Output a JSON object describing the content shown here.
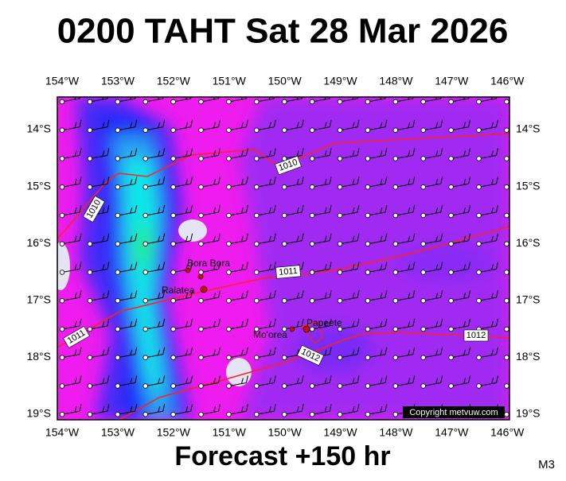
{
  "title": "0200 TAHT Sat 28 Mar 2026",
  "footer": "Forecast +150 hr",
  "model": "M3",
  "copyright": "Copyright metvuw.com",
  "longitude_labels": [
    "154°W",
    "153°W",
    "152°W",
    "151°W",
    "150°W",
    "149°W",
    "148°W",
    "147°W",
    "146°W"
  ],
  "latitude_labels": [
    "14°S",
    "15°S",
    "16°S",
    "17°S",
    "18°S",
    "19°S"
  ],
  "places": [
    "Bora Bora",
    "Raiatea",
    "Mo'orea",
    "Papeete"
  ],
  "isobar_labels": [
    "1010",
    "1010",
    "1011",
    "1011",
    "1012",
    "1012"
  ]
}
